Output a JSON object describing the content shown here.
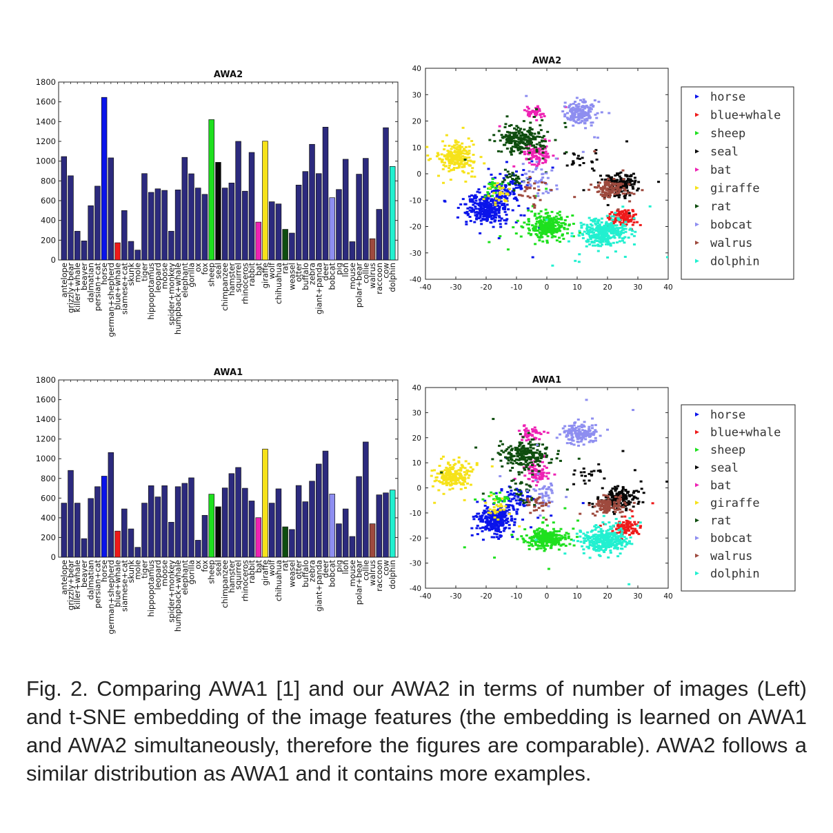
{
  "chart_data": [
    {
      "id": "bar-awa2",
      "type": "bar",
      "title": "AWA2",
      "ylim": [
        0,
        1800
      ],
      "yticks": [
        0,
        200,
        400,
        600,
        800,
        1000,
        1200,
        1400,
        1600,
        1800
      ],
      "categories": [
        "antelope",
        "grizzly+bear",
        "killer+whale",
        "beaver",
        "dalmatian",
        "persian+cat",
        "horse",
        "german+shepherd",
        "blue+whale",
        "siamese+cat",
        "skunk",
        "mole",
        "tiger",
        "hippopotamus",
        "leopard",
        "moose",
        "spider+monkey",
        "humpback+whale",
        "elephant",
        "gorilla",
        "ox",
        "fox",
        "sheep",
        "seal",
        "chimpanzee",
        "hamster",
        "squirrel",
        "rhinoceros",
        "rabbit",
        "bat",
        "giraffe",
        "wolf",
        "chihuahua",
        "rat",
        "weasel",
        "otter",
        "buffalo",
        "zebra",
        "giant+panda",
        "deer",
        "bobcat",
        "pig",
        "lion",
        "mouse",
        "polar+bear",
        "collie",
        "walrus",
        "raccoon",
        "cow",
        "dolphin"
      ],
      "values": [
        1046,
        852,
        291,
        193,
        549,
        747,
        1645,
        1033,
        174,
        500,
        188,
        100,
        874,
        684,
        720,
        704,
        291,
        709,
        1038,
        872,
        728,
        664,
        1420,
        988,
        728,
        779,
        1200,
        696,
        1088,
        383,
        1202,
        589,
        567,
        310,
        272,
        758,
        895,
        1170,
        874,
        1344,
        630,
        713,
        1019,
        185,
        868,
        1028,
        215,
        512,
        1338,
        946
      ],
      "highlight": {
        "horse": "#0a14ea",
        "blue+whale": "#ee1a1a",
        "sheep": "#1ee01e",
        "seal": "#060606",
        "bat": "#ee22b4",
        "giraffe": "#f6e21a",
        "rat": "#0e4d0e",
        "bobcat": "#8e8ef0",
        "walrus": "#9e4a3e",
        "dolphin": "#22f0d0"
      },
      "default_color": "#2c2a7e"
    },
    {
      "id": "bar-awa1",
      "type": "bar",
      "title": "AWA1",
      "ylim": [
        0,
        1800
      ],
      "yticks": [
        0,
        200,
        400,
        600,
        800,
        1000,
        1200,
        1400,
        1600,
        1800
      ],
      "categories": [
        "antelope",
        "grizzly+bear",
        "killer+whale",
        "beaver",
        "dalmatian",
        "persian+cat",
        "horse",
        "german+shepherd",
        "blue+whale",
        "siamese+cat",
        "skunk",
        "mole",
        "tiger",
        "hippopotamus",
        "leopard",
        "moose",
        "spider+monkey",
        "humpback+whale",
        "elephant",
        "gorilla",
        "ox",
        "fox",
        "sheep",
        "seal",
        "chimpanzee",
        "hamster",
        "squirrel",
        "rhinoceros",
        "rabbit",
        "bat",
        "giraffe",
        "wolf",
        "chihuahua",
        "rat",
        "weasel",
        "otter",
        "buffalo",
        "zebra",
        "giant+panda",
        "deer",
        "bobcat",
        "pig",
        "lion",
        "mouse",
        "polar+bear",
        "collie",
        "walrus",
        "raccoon",
        "cow",
        "dolphin"
      ],
      "values": [
        549,
        881,
        549,
        188,
        596,
        716,
        823,
        1063,
        265,
        490,
        287,
        100,
        549,
        726,
        612,
        726,
        355,
        716,
        750,
        806,
        172,
        425,
        640,
        512,
        703,
        849,
        911,
        700,
        571,
        401,
        1098,
        549,
        694,
        308,
        281,
        728,
        563,
        772,
        946,
        1078,
        641,
        339,
        490,
        210,
        819,
        1170,
        339,
        633,
        653,
        682
      ],
      "highlight": {
        "horse": "#0a14ea",
        "blue+whale": "#ee1a1a",
        "sheep": "#1ee01e",
        "seal": "#060606",
        "bat": "#ee22b4",
        "giraffe": "#f6e21a",
        "rat": "#0e4d0e",
        "bobcat": "#8e8ef0",
        "walrus": "#9e4a3e",
        "dolphin": "#22f0d0"
      },
      "default_color": "#2c2a7e"
    },
    {
      "id": "tsne-awa2",
      "type": "scatter",
      "title": "AWA2",
      "xlim": [
        -40,
        40
      ],
      "ylim": [
        -40,
        40
      ],
      "xticks": [
        -40,
        -30,
        -20,
        -10,
        0,
        10,
        20,
        30,
        40
      ],
      "yticks": [
        -40,
        -30,
        -20,
        -10,
        0,
        10,
        20,
        30,
        40
      ],
      "legend": "right",
      "series": [
        {
          "name": "horse",
          "color": "#0a14ea",
          "clusters": [
            [
              -19,
              -13,
              5,
              4.5,
              300
            ],
            [
              -13,
              -6,
              4,
              5,
              80
            ]
          ]
        },
        {
          "name": "blue+whale",
          "color": "#ee1a1a",
          "clusters": [
            [
              25,
              -17,
              3,
              2.5,
              90
            ]
          ]
        },
        {
          "name": "sheep",
          "color": "#1ee01e",
          "clusters": [
            [
              0,
              -20,
              5,
              3.5,
              260
            ],
            [
              -18,
              -5,
              3,
              2,
              25
            ]
          ]
        },
        {
          "name": "seal",
          "color": "#060606",
          "clusters": [
            [
              24,
              -4,
              4,
              3,
              160
            ],
            [
              10,
              5,
              4,
              3,
              20
            ]
          ]
        },
        {
          "name": "bat",
          "color": "#ee22b4",
          "clusters": [
            [
              -3,
              7,
              3,
              3,
              80
            ],
            [
              -4,
              23,
              3,
              2,
              40
            ]
          ]
        },
        {
          "name": "giraffe",
          "color": "#f6e21a",
          "clusters": [
            [
              -30,
              6,
              4,
              4,
              200
            ],
            [
              -16,
              -8,
              3,
              3,
              25
            ]
          ]
        },
        {
          "name": "rat",
          "color": "#0e4d0e",
          "clusters": [
            [
              -8,
              13,
              6,
              4,
              220
            ],
            [
              -10,
              -2,
              3,
              3,
              25
            ]
          ]
        },
        {
          "name": "bobcat",
          "color": "#8e8ef0",
          "clusters": [
            [
              11,
              23,
              4,
              3,
              150
            ],
            [
              -2,
              -3,
              4,
              4,
              40
            ]
          ]
        },
        {
          "name": "walrus",
          "color": "#9e4a3e",
          "clusters": [
            [
              21,
              -6,
              4,
              2.5,
              110
            ],
            [
              -5,
              -7,
              3,
              3,
              25
            ]
          ]
        },
        {
          "name": "dolphin",
          "color": "#22f0d0",
          "clusters": [
            [
              19,
              -22,
              5,
              3.5,
              320
            ]
          ]
        }
      ]
    },
    {
      "id": "tsne-awa1",
      "type": "scatter",
      "title": "AWA1",
      "xlim": [
        -40,
        40
      ],
      "ylim": [
        -40,
        40
      ],
      "xticks": [
        -40,
        -30,
        -20,
        -10,
        0,
        10,
        20,
        30,
        40
      ],
      "yticks": [
        -40,
        -30,
        -20,
        -10,
        0,
        10,
        20,
        30,
        40
      ],
      "legend": "right",
      "series": [
        {
          "name": "horse",
          "color": "#0a14ea",
          "clusters": [
            [
              -17,
              -13,
              4.5,
              4,
              260
            ],
            [
              -10,
              -4,
              4,
              4,
              60
            ]
          ]
        },
        {
          "name": "blue+whale",
          "color": "#ee1a1a",
          "clusters": [
            [
              26,
              -16,
              3,
              2.5,
              90
            ]
          ]
        },
        {
          "name": "sheep",
          "color": "#1ee01e",
          "clusters": [
            [
              0,
              -20,
              5,
              3,
              240
            ],
            [
              -16,
              -4,
              3,
              2,
              25
            ]
          ]
        },
        {
          "name": "seal",
          "color": "#060606",
          "clusters": [
            [
              24,
              -4,
              4,
              3,
              150
            ],
            [
              12,
              6,
              4,
              3,
              20
            ]
          ]
        },
        {
          "name": "bat",
          "color": "#ee22b4",
          "clusters": [
            [
              -3,
              6,
              3,
              3,
              80
            ],
            [
              -5,
              22,
              3,
              2,
              40
            ]
          ]
        },
        {
          "name": "giraffe",
          "color": "#f6e21a",
          "clusters": [
            [
              -31,
              5,
              4,
              3.5,
              200
            ],
            [
              -16,
              -8,
              3,
              3,
              25
            ]
          ]
        },
        {
          "name": "rat",
          "color": "#0e4d0e",
          "clusters": [
            [
              -7,
              13,
              6,
              4,
              220
            ],
            [
              -8,
              -2,
              3,
              3,
              25
            ]
          ]
        },
        {
          "name": "bobcat",
          "color": "#8e8ef0",
          "clusters": [
            [
              11,
              22,
              4,
              3,
              150
            ],
            [
              -2,
              -2,
              4,
              4,
              40
            ]
          ]
        },
        {
          "name": "walrus",
          "color": "#9e4a3e",
          "clusters": [
            [
              20,
              -7,
              4,
              2.5,
              110
            ],
            [
              -3,
              -6,
              3,
              3,
              25
            ]
          ]
        },
        {
          "name": "dolphin",
          "color": "#22f0d0",
          "clusters": [
            [
              19,
              -21,
              5,
              3.5,
              300
            ]
          ]
        }
      ]
    }
  ],
  "caption": "Fig. 2. Comparing AWA1 [1] and our AWA2 in terms of number of images (Left) and t-SNE embedding of the image features (the embedding is learned on AWA1 and AWA2 simultaneously, therefore the figures are comparable). AWA2 follows a similar distribution as AWA1 and it contains more examples."
}
